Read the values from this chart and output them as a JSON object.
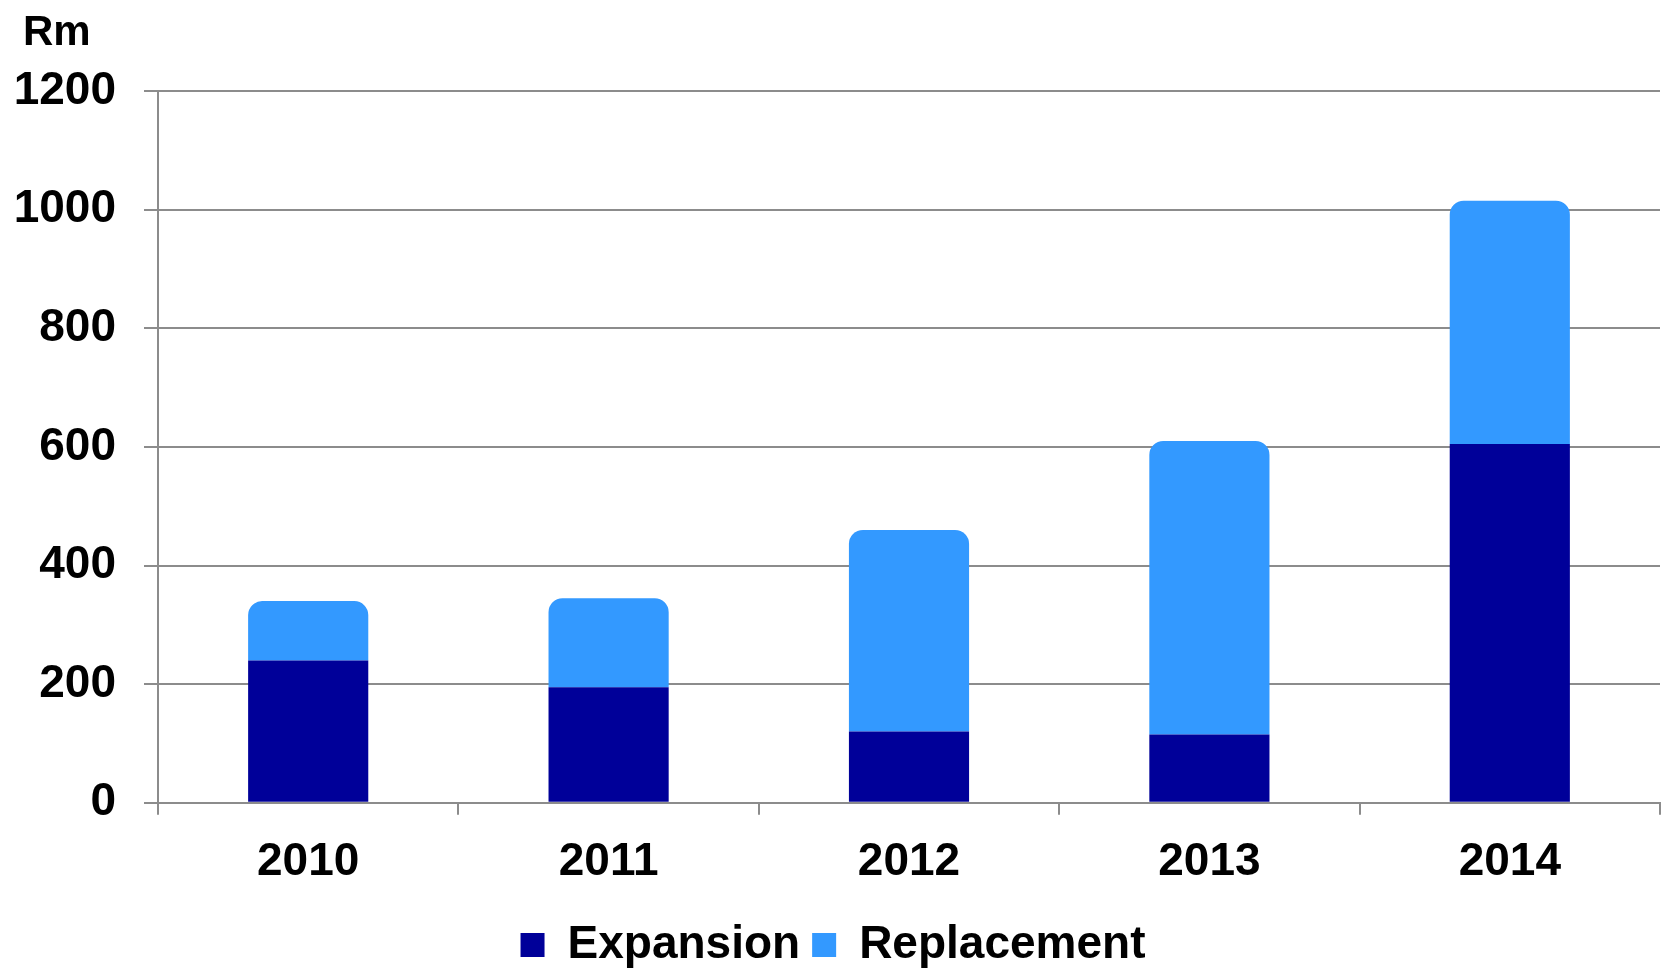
{
  "chart_data": {
    "type": "bar",
    "ylabel": "Rm",
    "categories": [
      "2010",
      "2011",
      "2012",
      "2013",
      "2014"
    ],
    "series": [
      {
        "name": "Expansion",
        "color": "#000099",
        "values": [
          240,
          195,
          120,
          115,
          605
        ]
      },
      {
        "name": "Replacement",
        "color": "#3399ff",
        "values": [
          100,
          150,
          340,
          495,
          410
        ]
      }
    ],
    "stacked": true,
    "ylim": [
      0,
      1200
    ],
    "yticks": [
      0,
      200,
      400,
      600,
      800,
      1000,
      1200
    ],
    "grid": "y",
    "legend": "bottom"
  }
}
